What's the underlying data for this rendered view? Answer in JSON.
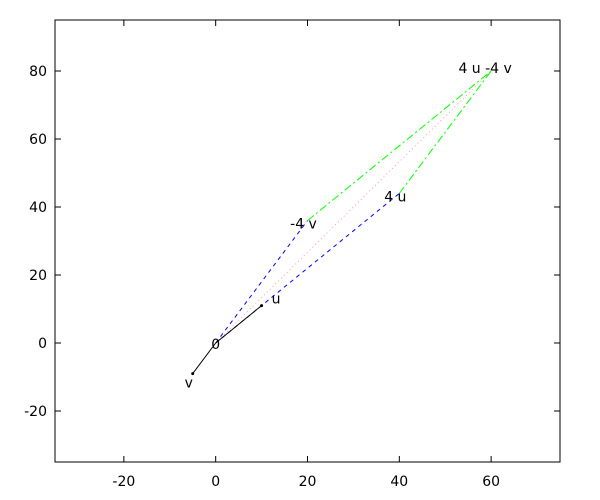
{
  "chart_data": {
    "type": "line",
    "title": "",
    "xlabel": "",
    "ylabel": "",
    "xlim": [
      -35,
      75
    ],
    "ylim": [
      -35,
      95
    ],
    "grid": false,
    "xticks": [
      -20,
      0,
      20,
      40,
      60
    ],
    "yticks": [
      -20,
      0,
      20,
      40,
      60,
      80
    ],
    "vectors": [
      {
        "from": [
          0,
          0
        ],
        "to": [
          10,
          11
        ],
        "color": "#000000"
      },
      {
        "from": [
          0,
          0
        ],
        "to": [
          -5,
          -9
        ],
        "color": "#000000"
      }
    ],
    "series": [
      {
        "style": "dashed",
        "color": "#0000ff",
        "points": [
          [
            0,
            0
          ],
          [
            20,
            36
          ]
        ]
      },
      {
        "style": "dashed",
        "color": "#0000ff",
        "points": [
          [
            0,
            0
          ],
          [
            40,
            44
          ]
        ]
      },
      {
        "style": "dotted",
        "color": "#ffa0a0",
        "points": [
          [
            0,
            0
          ],
          [
            60,
            80
          ]
        ]
      },
      {
        "style": "dash-dot",
        "color": "#00ff00",
        "points": [
          [
            20,
            36
          ],
          [
            60,
            80
          ]
        ]
      },
      {
        "style": "dash-dot",
        "color": "#00ff00",
        "points": [
          [
            40,
            44
          ],
          [
            60,
            80
          ]
        ]
      }
    ],
    "annotations": [
      {
        "text": "0",
        "at": [
          0,
          0
        ]
      },
      {
        "text": "u",
        "at": [
          10,
          11
        ]
      },
      {
        "text": "v",
        "at": [
          -5,
          -9
        ]
      },
      {
        "text": "-4 v",
        "at": [
          20,
          36
        ]
      },
      {
        "text": "4 u",
        "at": [
          40,
          44
        ]
      },
      {
        "text": "4 u -4 v",
        "at": [
          60,
          80
        ]
      }
    ]
  }
}
